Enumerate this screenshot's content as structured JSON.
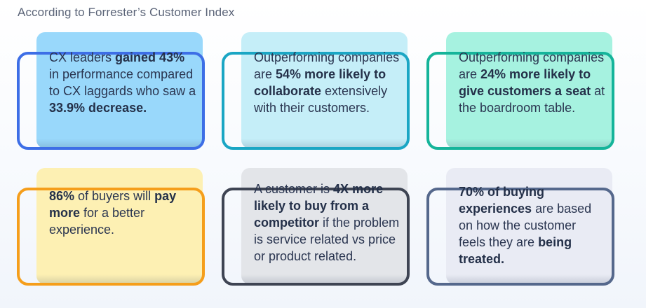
{
  "heading": "According to Forrester’s Customer Index",
  "colors": {
    "card1_fill": "#99d8fb",
    "card1_frame": "#3d6ee6",
    "card2_fill": "#c5eef8",
    "card2_frame": "#1aa6c4",
    "card3_fill": "#a6f2e0",
    "card3_frame": "#15b49a",
    "card4_fill": "#fdf0b3",
    "card4_frame": "#f59e1b",
    "card5_fill": "#e3e5e9",
    "card5_frame": "#3e4453",
    "card6_fill": "#e9ebf4",
    "card6_frame": "#55688c"
  },
  "cards": [
    {
      "segments": [
        {
          "t": "CX leaders ",
          "b": false
        },
        {
          "t": "gained 43%",
          "b": true
        },
        {
          "t": " in performance compared to CX laggards who saw a ",
          "b": false
        },
        {
          "t": "33.9% decrease.",
          "b": true
        }
      ]
    },
    {
      "segments": [
        {
          "t": "Outperforming companies are ",
          "b": false
        },
        {
          "t": "54% more likely to collaborate",
          "b": true
        },
        {
          "t": " extensively with their customers.",
          "b": false
        }
      ]
    },
    {
      "segments": [
        {
          "t": "Outperforming companies are ",
          "b": false
        },
        {
          "t": "24% more likely to give customers a seat",
          "b": true
        },
        {
          "t": " at the boardroom table.",
          "b": false
        }
      ]
    },
    {
      "segments": [
        {
          "t": "86%",
          "b": true
        },
        {
          "t": " of buyers will ",
          "b": false
        },
        {
          "t": "pay more",
          "b": true
        },
        {
          "t": " for a better experience.",
          "b": false
        }
      ]
    },
    {
      "segments": [
        {
          "t": "A customer is ",
          "b": false
        },
        {
          "t": "4X more likely to buy from a competitor",
          "b": true
        },
        {
          "t": " if the problem is service related vs price or product related.",
          "b": false
        }
      ]
    },
    {
      "segments": [
        {
          "t": "70% of buying experiences",
          "b": true
        },
        {
          "t": " are based on how the customer feels they are ",
          "b": false
        },
        {
          "t": "being treated.",
          "b": true
        }
      ]
    }
  ]
}
